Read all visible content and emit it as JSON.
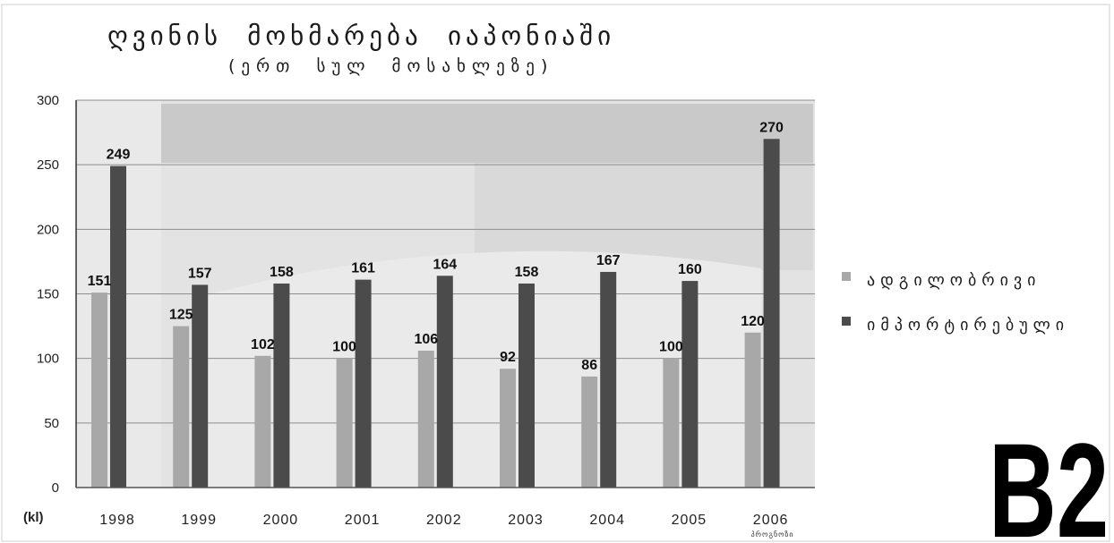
{
  "chart_data": {
    "type": "bar",
    "title": "ღვინის მოხმარება იაპონიაში",
    "subtitle": "(ერთ სულ მოსახლეზე)",
    "xlabel": "",
    "ylabel": "(kl)",
    "categories": [
      "1998",
      "1999",
      "2000",
      "2001",
      "2002",
      "2003",
      "2004",
      "2005",
      "2006"
    ],
    "annotations": [
      {
        "category": "2006",
        "text": "პროგნოზი"
      }
    ],
    "ylim": [
      0,
      300
    ],
    "yticks": [
      0,
      50,
      100,
      150,
      200,
      250,
      300
    ],
    "grid": true,
    "legend": "right",
    "data_labels": true,
    "series": [
      {
        "name": "ადგილობრივი",
        "color": "#a8a8a8",
        "values": [
          151,
          125,
          102,
          100,
          106,
          92,
          86,
          100,
          120
        ]
      },
      {
        "name": "იმპორტირებული",
        "color": "#4b4b4b",
        "values": [
          249,
          157,
          158,
          161,
          164,
          158,
          167,
          160,
          270
        ]
      }
    ]
  },
  "badge": {
    "text": "B2"
  },
  "colors": {
    "plot_background": "#e3e3e3",
    "gridline": "#8e8e8e",
    "axis": "#333333"
  }
}
